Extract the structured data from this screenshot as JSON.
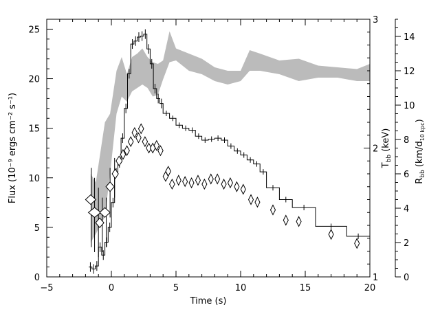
{
  "chart_data": {
    "type": "line",
    "title": "",
    "xlabel": "Time (s)",
    "ylabel": "Flux (10⁻⁹ ergs cm⁻² s⁻¹)",
    "y2label": "T",
    "y2label_sub": "bb",
    "y2label_unit": " (keV)",
    "y3label": "R",
    "y3label_sub": "bb",
    "y3label_unit": " (km/d",
    "y3label_unit_sub": "10 kpc",
    "y3label_close": ")",
    "xlim": [
      -5,
      20
    ],
    "ylim": [
      0,
      26
    ],
    "y2lim": [
      1,
      3
    ],
    "y3lim": [
      0,
      15
    ],
    "x_ticks": [
      "−5",
      "0",
      "5",
      "10",
      "15",
      "20"
    ],
    "y_ticks": [
      "0",
      "5",
      "10",
      "15",
      "20",
      "25"
    ],
    "y2_ticks": [
      "1",
      "2",
      "3"
    ],
    "y3_ticks": [
      "0",
      "2",
      "4",
      "6",
      "8",
      "10",
      "12",
      "14"
    ],
    "series": [
      {
        "kind": "flux-histogram",
        "color": "#000000",
        "points": [
          [
            -1.75,
            1.0
          ],
          [
            -1.5,
            0.8
          ],
          [
            -1.25,
            1.1
          ],
          [
            -1.0,
            3.0
          ],
          [
            -0.75,
            2.2
          ],
          [
            -0.5,
            3.5
          ],
          [
            -0.25,
            5.0
          ],
          [
            0.0,
            7.5
          ],
          [
            0.25,
            10.5
          ],
          [
            0.5,
            11.5
          ],
          [
            0.75,
            14.0
          ],
          [
            1.0,
            17.0
          ],
          [
            1.25,
            20.5
          ],
          [
            1.5,
            23.5
          ],
          [
            1.75,
            23.8
          ],
          [
            2.0,
            24.2
          ],
          [
            2.25,
            24.3
          ],
          [
            2.5,
            24.5
          ],
          [
            2.75,
            23.0
          ],
          [
            3.0,
            21.5
          ],
          [
            3.25,
            19.0
          ],
          [
            3.5,
            18.0
          ],
          [
            3.75,
            17.5
          ],
          [
            4.0,
            16.5
          ],
          [
            4.5,
            16.0
          ],
          [
            5.0,
            15.3
          ],
          [
            5.5,
            15.0
          ],
          [
            6.0,
            14.8
          ],
          [
            6.5,
            14.2
          ],
          [
            7.0,
            13.8
          ],
          [
            7.5,
            13.9
          ],
          [
            8.0,
            14.0
          ],
          [
            8.5,
            13.8
          ],
          [
            9.0,
            13.2
          ],
          [
            9.5,
            12.7
          ],
          [
            10.0,
            12.3
          ],
          [
            10.5,
            11.8
          ],
          [
            11.0,
            11.4
          ],
          [
            11.5,
            10.6
          ],
          [
            12.0,
            9.0
          ],
          [
            13.0,
            7.8
          ],
          [
            14.0,
            7.0
          ],
          [
            15.8,
            5.1
          ],
          [
            18.2,
            4.1
          ],
          [
            20.0,
            4.1
          ]
        ]
      },
      {
        "kind": "radius-band",
        "color": "#bbbbbb",
        "units": "y3",
        "points": [
          [
            -1.6,
            2.0,
            6.0
          ],
          [
            -1.2,
            2.5,
            5.5
          ],
          [
            -0.5,
            3.5,
            9.0
          ],
          [
            -0.1,
            6.0,
            9.5
          ],
          [
            0.4,
            9.5,
            12.0
          ],
          [
            0.8,
            10.5,
            12.8
          ],
          [
            1.2,
            10.2,
            11.8
          ],
          [
            1.6,
            10.8,
            12.8
          ],
          [
            2.0,
            11.0,
            13.0
          ],
          [
            2.4,
            11.2,
            13.3
          ],
          [
            2.8,
            11.0,
            12.8
          ],
          [
            3.2,
            10.5,
            12.5
          ],
          [
            3.6,
            10.6,
            12.4
          ],
          [
            4.0,
            11.5,
            12.6
          ],
          [
            4.5,
            12.5,
            14.3
          ],
          [
            5.0,
            12.6,
            13.3
          ],
          [
            6.0,
            12.0,
            13.0
          ],
          [
            7.0,
            11.8,
            12.7
          ],
          [
            8.0,
            11.4,
            12.2
          ],
          [
            9.0,
            11.2,
            12.0
          ],
          [
            10.0,
            11.4,
            12.0
          ],
          [
            10.7,
            12.0,
            13.2
          ],
          [
            11.5,
            12.0,
            13.0
          ],
          [
            13.0,
            11.8,
            12.6
          ],
          [
            14.5,
            11.4,
            12.7
          ],
          [
            16.0,
            11.6,
            12.3
          ],
          [
            17.5,
            11.6,
            12.2
          ],
          [
            19.0,
            11.4,
            12.1
          ],
          [
            20.0,
            11.4,
            12.4
          ]
        ]
      },
      {
        "kind": "temperature-diamonds",
        "color": "#000000",
        "units": "y2",
        "points": [
          [
            -1.6,
            1.6,
            0.1
          ],
          [
            -1.3,
            1.5,
            0.12
          ],
          [
            -0.9,
            1.42,
            0.08
          ],
          [
            -0.5,
            1.5,
            0.1
          ],
          [
            -0.1,
            1.7,
            0.08
          ],
          [
            0.3,
            1.8,
            0.06
          ],
          [
            0.6,
            1.9,
            0.06
          ],
          [
            0.9,
            1.95,
            0.05
          ],
          [
            1.2,
            1.98,
            0.05
          ],
          [
            1.5,
            2.05,
            0.05
          ],
          [
            1.8,
            2.12,
            0.05
          ],
          [
            2.1,
            2.08,
            0.05
          ],
          [
            2.3,
            2.15,
            0.05
          ],
          [
            2.6,
            2.05,
            0.05
          ],
          [
            2.9,
            2.0,
            0.05
          ],
          [
            3.2,
            2.0,
            0.05
          ],
          [
            3.5,
            2.02,
            0.05
          ],
          [
            3.8,
            1.98,
            0.05
          ],
          [
            4.2,
            1.78,
            0.05
          ],
          [
            4.4,
            1.82,
            0.05
          ],
          [
            4.7,
            1.72,
            0.05
          ],
          [
            5.2,
            1.75,
            0.04
          ],
          [
            5.7,
            1.74,
            0.04
          ],
          [
            6.2,
            1.73,
            0.04
          ],
          [
            6.7,
            1.75,
            0.04
          ],
          [
            7.2,
            1.72,
            0.04
          ],
          [
            7.7,
            1.76,
            0.04
          ],
          [
            8.2,
            1.76,
            0.04
          ],
          [
            8.7,
            1.72,
            0.04
          ],
          [
            9.2,
            1.73,
            0.04
          ],
          [
            9.7,
            1.7,
            0.04
          ],
          [
            10.2,
            1.68,
            0.04
          ],
          [
            10.8,
            1.6,
            0.04
          ],
          [
            11.3,
            1.58,
            0.04
          ],
          [
            12.5,
            1.52,
            0.03
          ],
          [
            13.5,
            1.44,
            0.03
          ],
          [
            14.5,
            1.43,
            0.03
          ],
          [
            17.0,
            1.33,
            0.03
          ],
          [
            19.0,
            1.26,
            0.03
          ]
        ]
      }
    ]
  }
}
